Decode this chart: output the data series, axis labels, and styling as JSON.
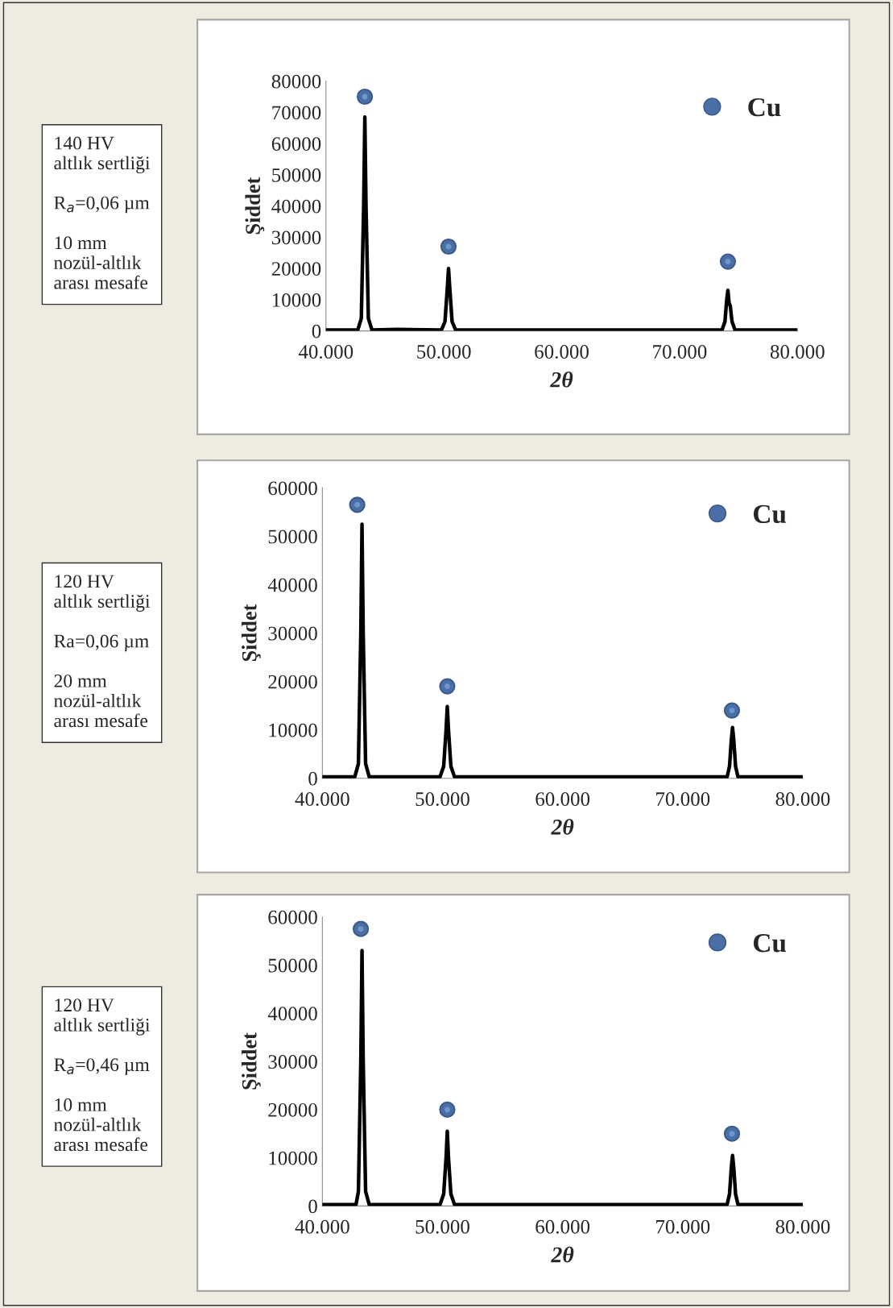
{
  "chart_data": [
    {
      "type": "line",
      "xlabel": "2θ",
      "ylabel": "Şiddet",
      "annotations": [
        "140 HV\naltlık sertliği\n\nR$_{a}$=0,06 µm\n\n10 mm\nnozül-altlık\narası mesafe"
      ],
      "xlim": [
        40000,
        80000
      ],
      "ylim": [
        0,
        80000
      ],
      "xticks": [
        {
          "value": 40000,
          "label": "40.000"
        },
        {
          "value": 50000,
          "label": "50.000"
        },
        {
          "value": 60000,
          "label": "60.000"
        },
        {
          "value": 70000,
          "label": "70.000"
        },
        {
          "value": 80000,
          "label": "80.000"
        }
      ],
      "yticks": [
        0,
        10000,
        20000,
        30000,
        40000,
        50000,
        60000,
        70000,
        80000
      ],
      "legend": "top right",
      "series": [
        {
          "color": "#000000",
          "x": [
            40000,
            42700,
            43000,
            43200,
            43300,
            43400,
            43600,
            43900,
            46000,
            49800,
            50100,
            50300,
            50400,
            50500,
            50700,
            51000,
            60000,
            73600,
            73850,
            74000,
            74100,
            74200,
            74300,
            74450,
            74700,
            80000
          ],
          "values": [
            300,
            300,
            4000,
            40000,
            68500,
            40000,
            4000,
            300,
            500,
            300,
            3000,
            14000,
            20000,
            14000,
            3000,
            300,
            300,
            300,
            3000,
            10000,
            13000,
            9000,
            8000,
            3000,
            300,
            300
          ]
        },
        {
          "type": "scatter",
          "name": "Cu",
          "color": "#4a6fa5",
          "x": [
            43300,
            50400,
            74100
          ],
          "values": [
            75000,
            27000,
            22200
          ]
        }
      ]
    },
    {
      "type": "line",
      "xlabel": "2θ",
      "ylabel": "Şiddet",
      "annotations": [
        "120 HV\naltlık sertliği\n\nRa=0,06 µm\n\n20 mm\nnozül-altlık\narası mesafe"
      ],
      "xlim": [
        40000,
        80000
      ],
      "ylim": [
        0,
        60000
      ],
      "xticks": [
        {
          "value": 40000,
          "label": "40.000"
        },
        {
          "value": 50000,
          "label": "50.000"
        },
        {
          "value": 60000,
          "label": "60.000"
        },
        {
          "value": 70000,
          "label": "70.000"
        },
        {
          "value": 80000,
          "label": "80.000"
        }
      ],
      "yticks": [
        0,
        10000,
        20000,
        30000,
        40000,
        50000,
        60000
      ],
      "legend": "top right",
      "series": [
        {
          "color": "#000000",
          "x": [
            40000,
            42700,
            43000,
            43200,
            43300,
            43400,
            43600,
            43900,
            49800,
            50100,
            50300,
            50400,
            50500,
            50700,
            51000,
            60000,
            73700,
            73900,
            74050,
            74150,
            74250,
            74400,
            74600,
            80000
          ],
          "values": [
            300,
            300,
            3000,
            30000,
            52500,
            30000,
            3000,
            300,
            300,
            2500,
            10000,
            14800,
            10000,
            2500,
            300,
            300,
            300,
            2500,
            8000,
            10500,
            8000,
            2500,
            300,
            300
          ]
        },
        {
          "type": "scatter",
          "name": "Cu",
          "color": "#4a6fa5",
          "x": [
            42900,
            50400,
            74100
          ],
          "values": [
            56500,
            19000,
            14000
          ]
        }
      ]
    },
    {
      "type": "line",
      "xlabel": "2θ",
      "ylabel": "Şiddet",
      "annotations": [
        "120 HV\naltlık sertliği\n\nR$_{a}$=0,46 µm\n\n10 mm\nnozül-altlık\narası mesafe"
      ],
      "xlim": [
        40000,
        80000
      ],
      "ylim": [
        0,
        60000
      ],
      "xticks": [
        {
          "value": 40000,
          "label": "40.000"
        },
        {
          "value": 50000,
          "label": "50.000"
        },
        {
          "value": 60000,
          "label": "60.000"
        },
        {
          "value": 70000,
          "label": "70.000"
        },
        {
          "value": 80000,
          "label": "80.000"
        }
      ],
      "yticks": [
        0,
        10000,
        20000,
        30000,
        40000,
        50000,
        60000
      ],
      "legend": "top right",
      "series": [
        {
          "color": "#000000",
          "x": [
            40000,
            42800,
            43000,
            43200,
            43300,
            43400,
            43600,
            43900,
            49800,
            50100,
            50300,
            50400,
            50500,
            50700,
            51000,
            60000,
            73700,
            73900,
            74050,
            74150,
            74250,
            74400,
            74600,
            80000
          ],
          "values": [
            300,
            300,
            3000,
            30000,
            53000,
            30000,
            3000,
            300,
            300,
            2500,
            10000,
            15500,
            10000,
            2500,
            300,
            300,
            300,
            2500,
            8000,
            10500,
            8000,
            2500,
            300,
            300
          ]
        },
        {
          "type": "scatter",
          "name": "Cu",
          "color": "#4a6fa5",
          "x": [
            43200,
            50400,
            74100
          ],
          "values": [
            57500,
            20000,
            15000
          ]
        }
      ]
    }
  ]
}
